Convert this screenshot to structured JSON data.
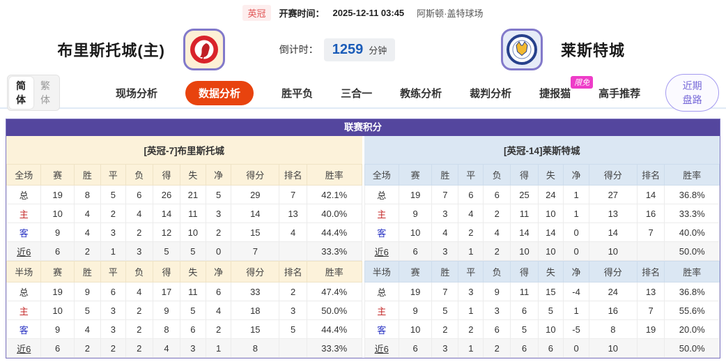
{
  "top_bar": {
    "league": "英冠",
    "kickoff_label": "开赛时间：",
    "kickoff_time": "2025-12-11 03:45",
    "venue": "阿斯顿·盖特球场"
  },
  "header": {
    "home_team": "布里斯托城(主)",
    "away_team": "莱斯特城",
    "home_crest_icon": "bristol-city-crest",
    "away_crest_icon": "leicester-city-crest",
    "countdown_label": "倒计时：",
    "countdown_value": "1259",
    "countdown_unit": "分钟"
  },
  "nav": {
    "lang": {
      "simplified": "简体",
      "traditional": "繁体"
    },
    "tabs": [
      {
        "label": "现场分析",
        "active": false
      },
      {
        "label": "数据分析",
        "active": true
      },
      {
        "label": "胜平负",
        "active": false
      },
      {
        "label": "三合一",
        "active": false
      },
      {
        "label": "教练分析",
        "active": false
      },
      {
        "label": "裁判分析",
        "active": false
      },
      {
        "label": "捷报猫",
        "active": false,
        "badge": "限免"
      },
      {
        "label": "高手推荐",
        "active": false
      }
    ],
    "recent_button": "近期盘路"
  },
  "table": {
    "title": "联赛积分",
    "left": {
      "section_title": "[英冠-7]布里斯托城",
      "full": {
        "header": [
          "全场",
          "赛",
          "胜",
          "平",
          "负",
          "得",
          "失",
          "净",
          "得分",
          "排名",
          "胜率"
        ],
        "rows": [
          [
            "总",
            "19",
            "8",
            "5",
            "6",
            "26",
            "21",
            "5",
            "29",
            "7",
            "42.1%"
          ],
          [
            "主",
            "10",
            "4",
            "2",
            "4",
            "14",
            "11",
            "3",
            "14",
            "13",
            "40.0%"
          ],
          [
            "客",
            "9",
            "4",
            "3",
            "2",
            "12",
            "10",
            "2",
            "15",
            "4",
            "44.4%"
          ],
          [
            "近6",
            "6",
            "2",
            "1",
            "3",
            "5",
            "5",
            "0",
            "7",
            "",
            "33.3%"
          ]
        ]
      },
      "half": {
        "header": [
          "半场",
          "赛",
          "胜",
          "平",
          "负",
          "得",
          "失",
          "净",
          "得分",
          "排名",
          "胜率"
        ],
        "rows": [
          [
            "总",
            "19",
            "9",
            "6",
            "4",
            "17",
            "11",
            "6",
            "33",
            "2",
            "47.4%"
          ],
          [
            "主",
            "10",
            "5",
            "3",
            "2",
            "9",
            "5",
            "4",
            "18",
            "3",
            "50.0%"
          ],
          [
            "客",
            "9",
            "4",
            "3",
            "2",
            "8",
            "6",
            "2",
            "15",
            "5",
            "44.4%"
          ],
          [
            "近6",
            "6",
            "2",
            "2",
            "2",
            "4",
            "3",
            "1",
            "8",
            "",
            "33.3%"
          ]
        ]
      }
    },
    "right": {
      "section_title": "[英冠-14]莱斯特城",
      "full": {
        "header": [
          "全场",
          "赛",
          "胜",
          "平",
          "负",
          "得",
          "失",
          "净",
          "得分",
          "排名",
          "胜率"
        ],
        "rows": [
          [
            "总",
            "19",
            "7",
            "6",
            "6",
            "25",
            "24",
            "1",
            "27",
            "14",
            "36.8%"
          ],
          [
            "主",
            "9",
            "3",
            "4",
            "2",
            "11",
            "10",
            "1",
            "13",
            "16",
            "33.3%"
          ],
          [
            "客",
            "10",
            "4",
            "2",
            "4",
            "14",
            "14",
            "0",
            "14",
            "7",
            "40.0%"
          ],
          [
            "近6",
            "6",
            "3",
            "1",
            "2",
            "10",
            "10",
            "0",
            "10",
            "",
            "50.0%"
          ]
        ]
      },
      "half": {
        "header": [
          "半场",
          "赛",
          "胜",
          "平",
          "负",
          "得",
          "失",
          "净",
          "得分",
          "排名",
          "胜率"
        ],
        "rows": [
          [
            "总",
            "19",
            "7",
            "3",
            "9",
            "11",
            "15",
            "-4",
            "24",
            "13",
            "36.8%"
          ],
          [
            "主",
            "9",
            "5",
            "1",
            "3",
            "6",
            "5",
            "1",
            "16",
            "7",
            "55.6%"
          ],
          [
            "客",
            "10",
            "2",
            "2",
            "6",
            "5",
            "10",
            "-5",
            "8",
            "19",
            "20.0%"
          ],
          [
            "近6",
            "6",
            "3",
            "1",
            "2",
            "6",
            "6",
            "0",
            "10",
            "",
            "50.0%"
          ]
        ]
      }
    }
  },
  "colors": {
    "panel_purple": "#54469e",
    "active_tab_red": "#e8430e",
    "home_panel_cream": "#fcf2da",
    "away_panel_blue": "#dbe7f3",
    "limit_badge_magenta": "#ee3cc8",
    "countdown_blue": "#1b5cb8",
    "home_row_red": "#c42b2b",
    "away_row_blue": "#2b35c4",
    "league_badge_red": "#e05252"
  }
}
